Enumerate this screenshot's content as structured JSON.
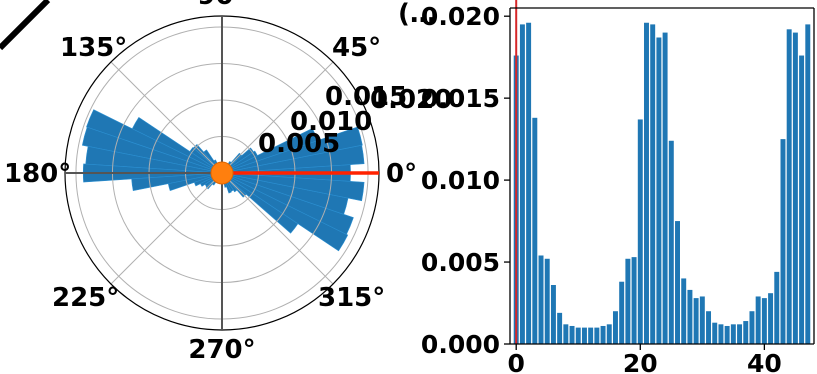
{
  "chart_data": [
    {
      "type": "polar-bar",
      "angle_tick_labels": [
        "0°",
        "45°",
        "90°",
        "135°",
        "180°",
        "225°",
        "270°",
        "315°"
      ],
      "radial_tick_labels": [
        "0.005",
        "0.010",
        "0.015",
        "0.020"
      ],
      "radial_ticks": [
        0.005,
        0.01,
        0.015,
        0.02
      ],
      "rmax": 0.0215,
      "bar_width_deg": 7.5,
      "bar_color": "#1f77b4",
      "marker_color": "#ff7f0e",
      "reference_line_color": "#ff2200",
      "reference_angle_deg": 0,
      "angles_deg": [
        0,
        7.5,
        15,
        22.5,
        30,
        37.5,
        45,
        52.5,
        60,
        67.5,
        75,
        82.5,
        90,
        97.5,
        105,
        112.5,
        120,
        127.5,
        135,
        142.5,
        150,
        157.5,
        165,
        172.5,
        180,
        187.5,
        195,
        202.5,
        210,
        217.5,
        225,
        232.5,
        240,
        247.5,
        255,
        262.5,
        270,
        277.5,
        285,
        292.5,
        300,
        307.5,
        315,
        322.5,
        330,
        337.5,
        345,
        352.5
      ],
      "values": [
        0.0176,
        0.0195,
        0.0196,
        0.0138,
        0.0054,
        0.0052,
        0.0036,
        0.0019,
        0.0012,
        0.0011,
        0.001,
        0.001,
        0.001,
        0.001,
        0.0011,
        0.0012,
        0.002,
        0.0038,
        0.0052,
        0.0053,
        0.0137,
        0.0196,
        0.0195,
        0.0187,
        0.019,
        0.0124,
        0.0075,
        0.004,
        0.0033,
        0.0028,
        0.0029,
        0.002,
        0.0013,
        0.0012,
        0.0011,
        0.0012,
        0.0012,
        0.0014,
        0.002,
        0.0029,
        0.0028,
        0.0031,
        0.0044,
        0.0125,
        0.0192,
        0.019,
        0.0176,
        0.0195
      ]
    },
    {
      "type": "bar",
      "title": "(…",
      "bar_color": "#1f77b4",
      "reference_line_color": "#d62728",
      "reference_x": 0,
      "x_tick_labels": [
        "0",
        "20",
        "40"
      ],
      "x_ticks": [
        0,
        20,
        40
      ],
      "y_tick_labels": [
        "0.000",
        "0.005",
        "0.010",
        "0.015",
        "0.020"
      ],
      "y_ticks": [
        0.0,
        0.005,
        0.01,
        0.015,
        0.02
      ],
      "xlim": [
        -1,
        48
      ],
      "ylim": [
        0,
        0.0205
      ],
      "x": [
        0,
        1,
        2,
        3,
        4,
        5,
        6,
        7,
        8,
        9,
        10,
        11,
        12,
        13,
        14,
        15,
        16,
        17,
        18,
        19,
        20,
        21,
        22,
        23,
        24,
        25,
        26,
        27,
        28,
        29,
        30,
        31,
        32,
        33,
        34,
        35,
        36,
        37,
        38,
        39,
        40,
        41,
        42,
        43,
        44,
        45,
        46,
        47
      ],
      "values": [
        0.0176,
        0.0195,
        0.0196,
        0.0138,
        0.0054,
        0.0052,
        0.0036,
        0.0019,
        0.0012,
        0.0011,
        0.001,
        0.001,
        0.001,
        0.001,
        0.0011,
        0.0012,
        0.002,
        0.0038,
        0.0052,
        0.0053,
        0.0137,
        0.0196,
        0.0195,
        0.0187,
        0.019,
        0.0124,
        0.0075,
        0.004,
        0.0033,
        0.0028,
        0.0029,
        0.002,
        0.0013,
        0.0012,
        0.0011,
        0.0012,
        0.0012,
        0.0014,
        0.002,
        0.0029,
        0.0028,
        0.0031,
        0.0044,
        0.0125,
        0.0192,
        0.019,
        0.0176,
        0.0195
      ]
    }
  ]
}
